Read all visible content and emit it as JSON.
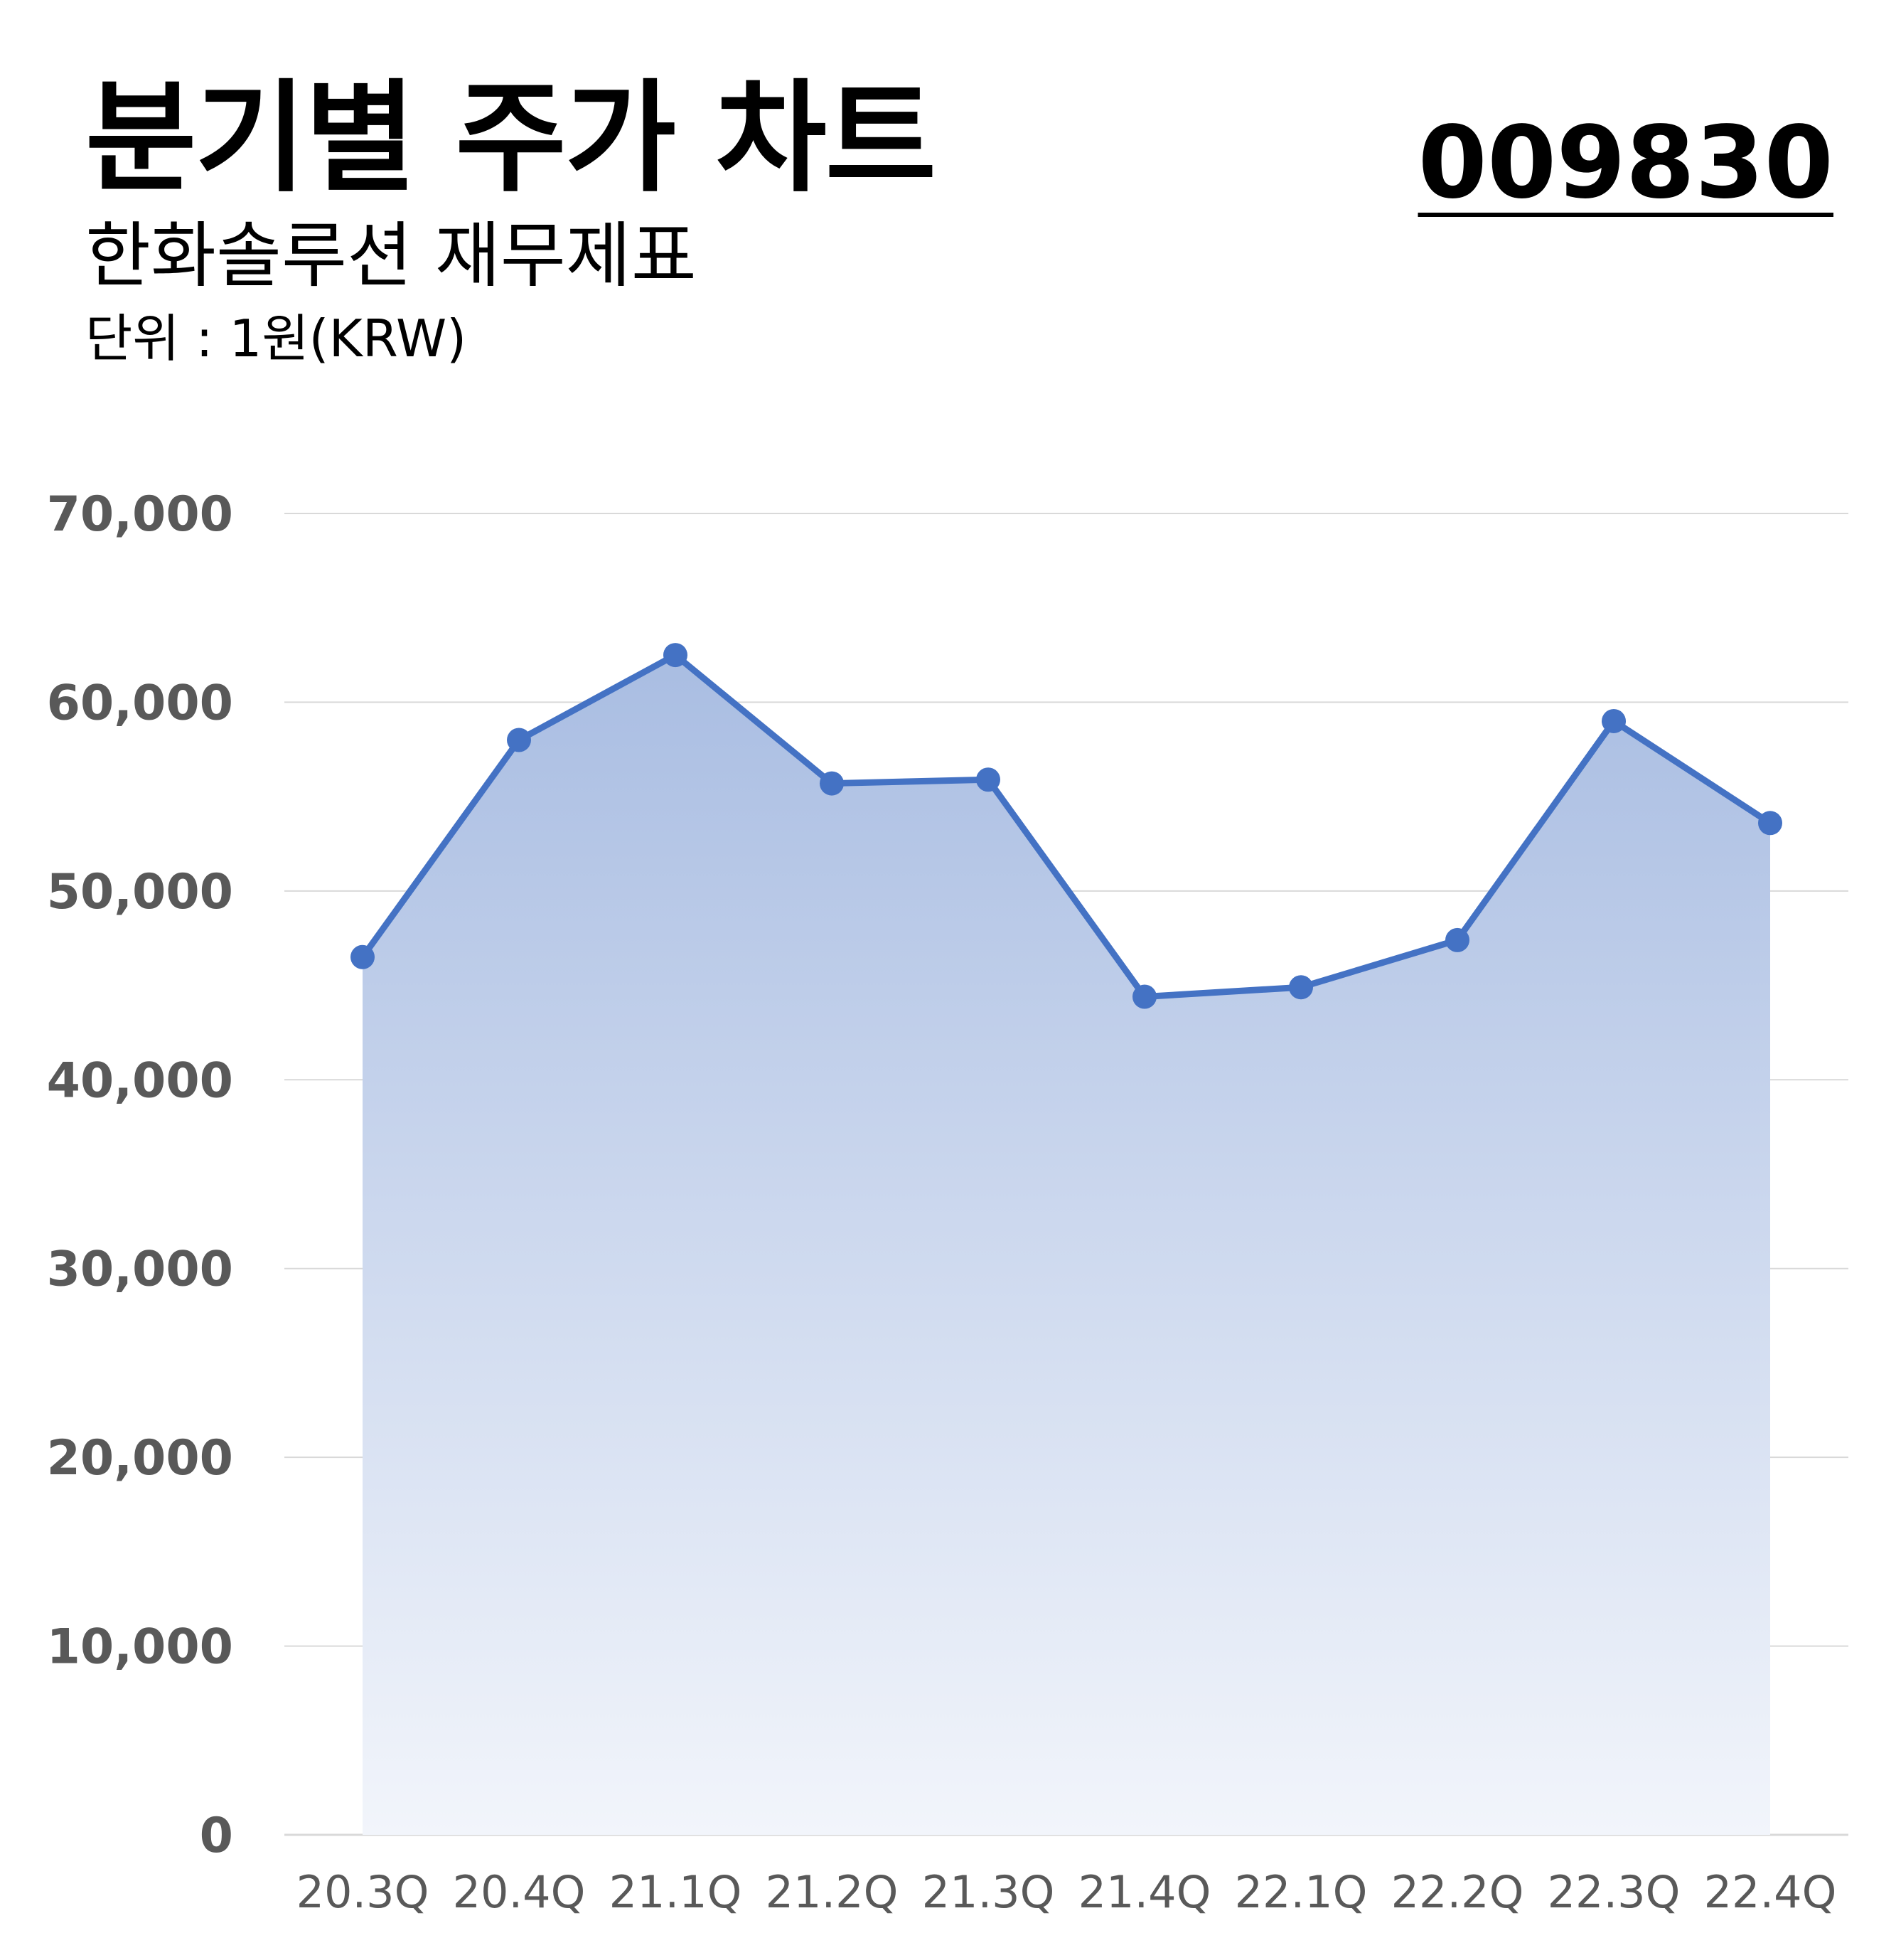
{
  "header": {
    "title": "분기별 주가 차트",
    "subtitle": "한화솔루션 재무제표",
    "unit": "단위 : 1원(KRW)",
    "code": "009830"
  },
  "colors": {
    "line": "#4472C4",
    "fill_top": "#A9BDE2",
    "fill_bottom": "#F2F5FB",
    "grid": "#D9D9D9",
    "tick_text": "#595959"
  },
  "chart_data": {
    "type": "area",
    "categories": [
      "20.3Q",
      "20.4Q",
      "21.1Q",
      "21.2Q",
      "21.3Q",
      "21.4Q",
      "22.1Q",
      "22.2Q",
      "22.3Q",
      "22.4Q"
    ],
    "series": [
      {
        "values": [
          46500,
          58000,
          62500,
          55700,
          55900,
          44400,
          44900,
          47400,
          59000,
          53600
        ]
      }
    ],
    "y_ticks": [
      "0",
      "10,000",
      "20,000",
      "30,000",
      "40,000",
      "50,000",
      "60,000",
      "70,000"
    ],
    "ylim": [
      0,
      70000
    ],
    "grid": true,
    "markers": true,
    "legend": "none"
  }
}
